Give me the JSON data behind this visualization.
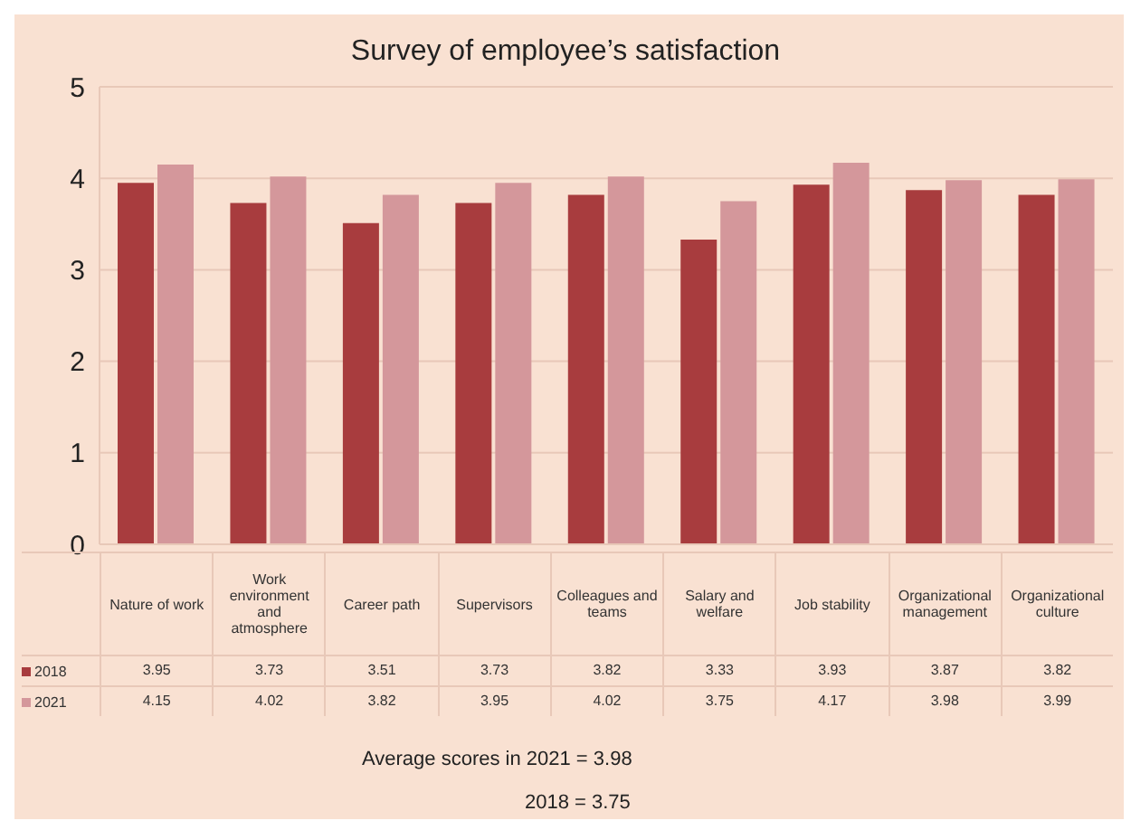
{
  "chart_data": {
    "type": "bar",
    "title": "Survey of employee’s satisfaction",
    "categories": [
      "Nature of work",
      "Work environment and atmosphere",
      "Career path",
      "Supervisors",
      "Colleagues and teams",
      "Salary and welfare",
      "Job stability",
      "Organizational management",
      "Organizational culture"
    ],
    "series": [
      {
        "name": "2018",
        "color": "#a83c3e",
        "values": [
          3.95,
          3.73,
          3.51,
          3.73,
          3.82,
          3.33,
          3.93,
          3.87,
          3.82
        ]
      },
      {
        "name": "2021",
        "color": "#d4979b",
        "values": [
          4.15,
          4.02,
          3.82,
          3.95,
          4.02,
          3.75,
          4.17,
          3.98,
          3.99
        ]
      }
    ],
    "ylim": [
      0,
      5
    ],
    "yticks": [
      0,
      1,
      2,
      3,
      4,
      5
    ],
    "grid": "y",
    "legend": "bottom left",
    "data_labels": true,
    "annotations": [
      "Average scores in 2021 = 3.98",
      "2018 = 3.75"
    ]
  }
}
